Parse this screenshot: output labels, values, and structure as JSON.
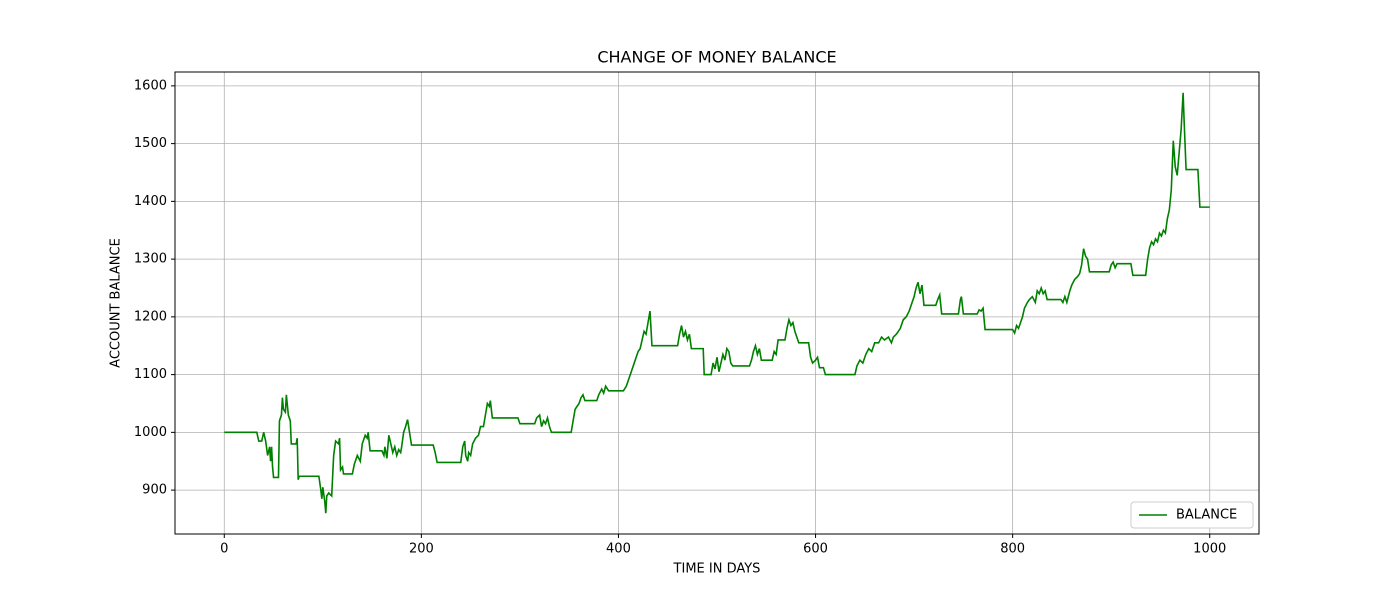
{
  "chart_data": {
    "type": "line",
    "title": "CHANGE OF MONEY BALANCE",
    "xlabel": "TIME IN DAYS",
    "ylabel": "ACCOUNT BALANCE",
    "xlim": [
      -50,
      1050
    ],
    "ylim": [
      824,
      1624
    ],
    "xticks": [
      0,
      200,
      400,
      600,
      800,
      1000
    ],
    "yticks": [
      900,
      1000,
      1100,
      1200,
      1300,
      1400,
      1500,
      1600
    ],
    "grid": true,
    "legend": "lower right",
    "x": [
      0,
      33,
      35,
      38,
      40,
      42,
      44,
      46,
      47,
      48,
      49,
      50,
      55,
      56,
      58,
      59,
      60,
      62,
      63,
      65,
      67,
      68,
      73,
      74,
      75,
      76,
      96,
      98,
      99,
      100,
      102,
      103,
      104,
      106,
      109,
      111,
      113,
      116,
      117,
      118,
      120,
      121,
      130,
      132,
      135,
      138,
      140,
      143,
      145,
      146,
      148,
      160,
      162,
      163,
      165,
      167,
      169,
      171,
      173,
      175,
      177,
      179,
      180,
      182,
      184,
      186,
      188,
      190,
      212,
      214,
      216,
      240,
      242,
      244,
      245,
      247,
      248,
      250,
      252,
      255,
      258,
      260,
      263,
      265,
      267,
      269,
      270,
      272,
      298,
      300,
      315,
      317,
      320,
      322,
      324,
      326,
      328,
      330,
      332,
      352,
      354,
      356,
      358,
      360,
      362,
      364,
      366,
      378,
      380,
      383,
      385,
      387,
      390,
      405,
      408,
      410,
      412,
      414,
      416,
      418,
      420,
      422,
      424,
      426,
      428,
      430,
      432,
      434,
      460,
      462,
      464,
      466,
      468,
      470,
      472,
      474,
      486,
      487,
      494,
      496,
      498,
      500,
      502,
      504,
      506,
      508,
      510,
      512,
      514,
      516,
      533,
      535,
      537,
      539,
      541,
      543,
      545,
      556,
      558,
      560,
      562,
      569,
      571,
      573,
      575,
      577,
      579,
      581,
      583,
      593,
      595,
      597,
      600,
      602,
      604,
      608,
      610,
      640,
      642,
      645,
      648,
      651,
      654,
      657,
      660,
      664,
      667,
      670,
      674,
      677,
      679,
      682,
      686,
      689,
      692,
      695,
      698,
      700,
      702,
      704,
      706,
      708,
      710,
      722,
      724,
      726,
      728,
      745,
      747,
      748,
      750,
      764,
      766,
      768,
      770,
      772,
      800,
      802,
      804,
      806,
      808,
      810,
      812,
      815,
      817,
      820,
      823,
      825,
      827,
      829,
      831,
      833,
      835,
      849,
      851,
      853,
      855,
      858,
      860,
      863,
      866,
      868,
      870,
      872,
      874,
      876,
      878,
      898,
      900,
      902,
      904,
      906,
      920,
      922,
      935,
      937,
      939,
      941,
      943,
      945,
      947,
      949,
      951,
      953,
      955,
      957,
      959,
      961,
      963,
      965,
      967,
      969,
      971,
      973,
      974,
      976,
      988,
      990,
      1000
    ],
    "series": [
      {
        "name": "BALANCE",
        "color": "#008000",
        "values": [
          1000,
          1000,
          985,
          985,
          1000,
          985,
          960,
          975,
          950,
          975,
          940,
          922,
          922,
          1020,
          1030,
          1060,
          1040,
          1035,
          1065,
          1030,
          1020,
          980,
          980,
          990,
          918,
          924,
          924,
          900,
          885,
          905,
          880,
          860,
          890,
          895,
          890,
          960,
          985,
          980,
          990,
          935,
          940,
          928,
          928,
          945,
          960,
          950,
          980,
          995,
          990,
          1000,
          968,
          968,
          960,
          975,
          955,
          995,
          980,
          965,
          975,
          960,
          970,
          965,
          975,
          1000,
          1010,
          1022,
          1000,
          978,
          978,
          965,
          948,
          948,
          975,
          985,
          960,
          950,
          965,
          960,
          980,
          990,
          995,
          1010,
          1010,
          1030,
          1050,
          1045,
          1055,
          1025,
          1025,
          1015,
          1015,
          1025,
          1030,
          1010,
          1020,
          1015,
          1025,
          1010,
          1000,
          1000,
          1020,
          1040,
          1045,
          1050,
          1060,
          1065,
          1055,
          1055,
          1065,
          1075,
          1068,
          1080,
          1072,
          1072,
          1080,
          1090,
          1100,
          1110,
          1120,
          1130,
          1140,
          1145,
          1160,
          1175,
          1170,
          1190,
          1210,
          1150,
          1150,
          1170,
          1185,
          1165,
          1175,
          1160,
          1170,
          1145,
          1145,
          1100,
          1100,
          1120,
          1110,
          1130,
          1105,
          1120,
          1135,
          1125,
          1145,
          1140,
          1120,
          1115,
          1115,
          1125,
          1140,
          1150,
          1135,
          1145,
          1125,
          1125,
          1140,
          1135,
          1160,
          1160,
          1180,
          1195,
          1185,
          1190,
          1175,
          1165,
          1155,
          1155,
          1130,
          1120,
          1125,
          1130,
          1112,
          1112,
          1100,
          1100,
          1115,
          1125,
          1120,
          1135,
          1145,
          1140,
          1155,
          1155,
          1165,
          1160,
          1165,
          1155,
          1165,
          1170,
          1180,
          1195,
          1200,
          1210,
          1225,
          1235,
          1250,
          1260,
          1240,
          1255,
          1220,
          1220,
          1230,
          1238,
          1205,
          1205,
          1230,
          1235,
          1205,
          1205,
          1212,
          1210,
          1215,
          1178,
          1178,
          1172,
          1185,
          1180,
          1190,
          1200,
          1215,
          1225,
          1230,
          1235,
          1225,
          1245,
          1240,
          1250,
          1240,
          1245,
          1230,
          1230,
          1225,
          1235,
          1225,
          1245,
          1255,
          1265,
          1270,
          1275,
          1290,
          1318,
          1305,
          1300,
          1278,
          1278,
          1290,
          1295,
          1285,
          1292,
          1292,
          1272,
          1272,
          1300,
          1320,
          1330,
          1325,
          1335,
          1330,
          1345,
          1340,
          1350,
          1345,
          1370,
          1385,
          1420,
          1505,
          1460,
          1445,
          1485,
          1525,
          1588,
          1540,
          1455,
          1455,
          1390,
          1390
        ]
      }
    ]
  }
}
